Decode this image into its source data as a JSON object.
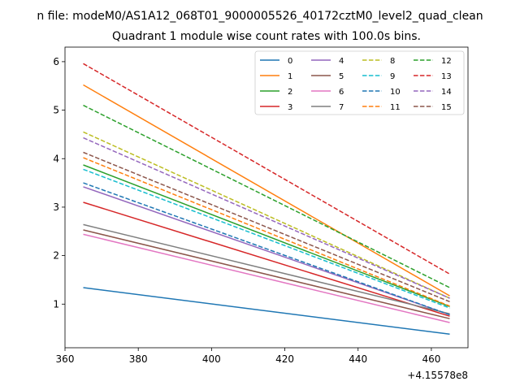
{
  "chart_data": {
    "type": "line",
    "suptitle": "n file: modeM0/AS1A12_068T01_9000005526_40172cztM0_level2_quad_clean",
    "title": "Quadrant 1 module wise count rates with 100.0s bins.",
    "xlabel": "",
    "ylabel": "",
    "x_offset_label": "+4.15578e8",
    "xlim": [
      360,
      470
    ],
    "ylim": [
      0.1,
      6.3
    ],
    "x_ticks": [
      360,
      380,
      400,
      420,
      440,
      460
    ],
    "y_ticks": [
      1,
      2,
      3,
      4,
      5,
      6
    ],
    "x_tick_labels": [
      "360",
      "380",
      "400",
      "420",
      "440",
      "460"
    ],
    "y_tick_labels": [
      "1",
      "2",
      "3",
      "4",
      "5",
      "6"
    ],
    "x": [
      365,
      465
    ],
    "legend_position": "top-right",
    "series": [
      {
        "name": "0",
        "values": [
          1.34,
          0.38
        ],
        "color": "#1f77b4",
        "dashed": false
      },
      {
        "name": "1",
        "values": [
          5.52,
          1.17
        ],
        "color": "#ff7f0e",
        "dashed": false
      },
      {
        "name": "2",
        "values": [
          3.87,
          0.95
        ],
        "color": "#2ca02c",
        "dashed": false
      },
      {
        "name": "3",
        "values": [
          3.1,
          0.75
        ],
        "color": "#d62728",
        "dashed": false
      },
      {
        "name": "4",
        "values": [
          3.42,
          0.78
        ],
        "color": "#9467bd",
        "dashed": false
      },
      {
        "name": "5",
        "values": [
          2.53,
          0.7
        ],
        "color": "#8c564b",
        "dashed": false
      },
      {
        "name": "6",
        "values": [
          2.44,
          0.62
        ],
        "color": "#e377c2",
        "dashed": false
      },
      {
        "name": "7",
        "values": [
          2.64,
          0.8
        ],
        "color": "#7f7f7f",
        "dashed": false
      },
      {
        "name": "8",
        "values": [
          4.55,
          1.12
        ],
        "color": "#bcbd22",
        "dashed": true
      },
      {
        "name": "9",
        "values": [
          3.78,
          0.92
        ],
        "color": "#17becf",
        "dashed": true
      },
      {
        "name": "10",
        "values": [
          3.5,
          0.78
        ],
        "color": "#1f77b4",
        "dashed": true
      },
      {
        "name": "11",
        "values": [
          4.02,
          0.96
        ],
        "color": "#ff7f0e",
        "dashed": true
      },
      {
        "name": "12",
        "values": [
          5.1,
          1.34
        ],
        "color": "#2ca02c",
        "dashed": true
      },
      {
        "name": "13",
        "values": [
          5.96,
          1.62
        ],
        "color": "#d62728",
        "dashed": true
      },
      {
        "name": "14",
        "values": [
          4.43,
          1.12
        ],
        "color": "#9467bd",
        "dashed": true
      },
      {
        "name": "15",
        "values": [
          4.13,
          1.05
        ],
        "color": "#8c564b",
        "dashed": true
      }
    ]
  }
}
